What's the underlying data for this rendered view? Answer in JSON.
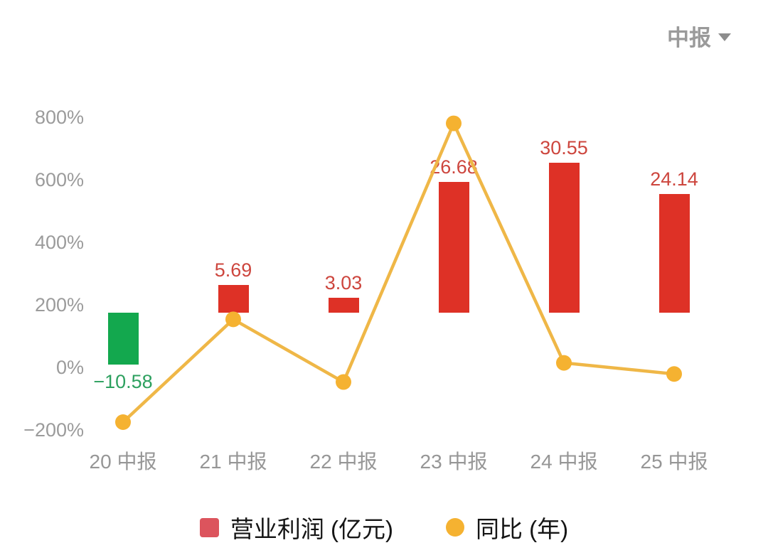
{
  "header": {
    "period_selector": {
      "label": "中报"
    }
  },
  "chart_data": {
    "type": "bar+line combo",
    "categories": [
      "20 中报",
      "21 中报",
      "22 中报",
      "23 中报",
      "24 中报",
      "25 中报"
    ],
    "series": [
      {
        "name": "营业利润 (亿元)",
        "type": "bar",
        "values": [
          -10.58,
          5.69,
          3.03,
          26.68,
          30.55,
          24.14
        ],
        "labels": [
          "−10.58",
          "5.69",
          "3.03",
          "26.68",
          "30.55",
          "24.14"
        ]
      },
      {
        "name": "同比 (年)",
        "type": "line",
        "unit": "%",
        "values": [
          -175.0,
          153.8,
          -46.7,
          780.5,
          14.5,
          -21.0
        ]
      }
    ],
    "y_axis": {
      "unit": "%",
      "min": -200,
      "max": 800,
      "tick_labels": [
        "800%",
        "600%",
        "400%",
        "200%",
        "0%",
        "−200%"
      ],
      "tick_values": [
        800,
        600,
        400,
        200,
        0,
        -200
      ]
    },
    "legend": [
      {
        "label": "营业利润 (亿元)",
        "swatch": "square",
        "color": "#DC545D"
      },
      {
        "label": "同比 (年)",
        "swatch": "circle",
        "color": "#F5B231"
      }
    ],
    "grid": false,
    "legend_position": "bottom",
    "colors": {
      "bar_positive": "#DE3126",
      "bar_negative": "#13A84E",
      "bar_label_positive": "#CD463E",
      "bar_label_negative": "#2DA05F",
      "line": "#EFB747",
      "dot": "#F5B231",
      "axis_text": "#9B9B9B",
      "legend_text": "#151515",
      "header_text": "#9A9A9A"
    }
  }
}
